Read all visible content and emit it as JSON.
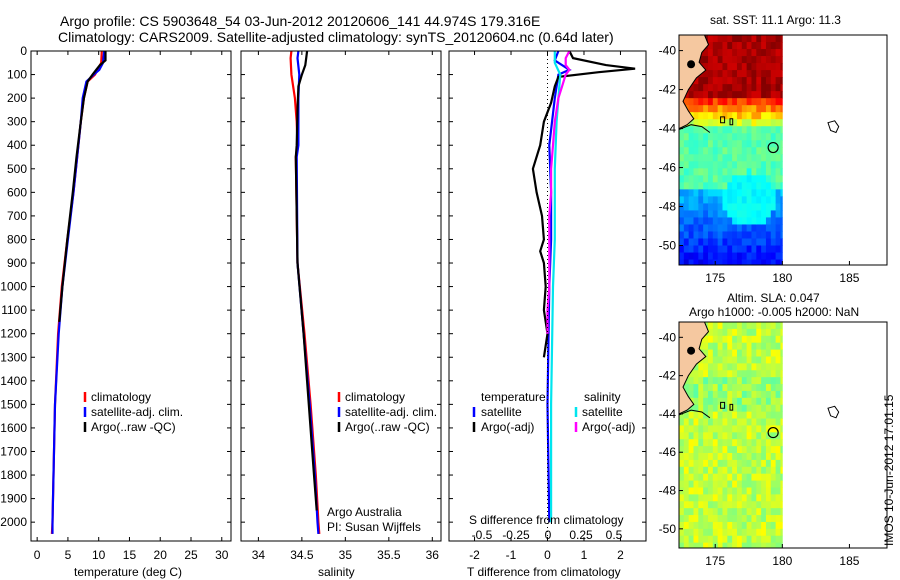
{
  "header": {
    "line1": "Argo profile: CS 5903648_54 03-Jun-2012 20120606_141 44.974S 179.316E",
    "line2": "Climatology: CARS2009. Satellite-adjusted climatology: synTS_20120604.nc (0.64d later)"
  },
  "depth_ticks": [
    "0",
    "100",
    "200",
    "300",
    "400",
    "500",
    "600",
    "700",
    "800",
    "900",
    "1000",
    "1100",
    "1200",
    "1300",
    "1400",
    "1500",
    "1600",
    "1700",
    "1800",
    "1900",
    "2000"
  ],
  "colors": {
    "climatology": "#ff0000",
    "satellite": "#0000ff",
    "argo": "#000000",
    "sat_salinity": "#00e5ee",
    "argo_salinity_adj": "#ff00ff",
    "land": "#f5c8a0"
  },
  "chart_data": [
    {
      "type": "line",
      "name": "temperature-profile",
      "xlabel": "temperature (deg C)",
      "xlim": [
        -1,
        31.5
      ],
      "ylim": [
        2080,
        0
      ],
      "xticks": [
        0,
        5,
        10,
        15,
        20,
        25,
        30
      ],
      "xtick_labels": [
        "0",
        "5",
        "10",
        "15",
        "20",
        "25",
        "30"
      ],
      "legend": [
        "climatology",
        "satellite-adj. clim.",
        "Argo(..raw -QC)"
      ],
      "series": [
        {
          "name": "climatology",
          "color": "#ff0000",
          "depth": [
            0,
            50,
            100,
            130,
            200,
            300,
            400,
            600,
            800,
            1000,
            1200,
            1500,
            2000,
            2050
          ],
          "values": [
            10.5,
            10.4,
            9.4,
            8.2,
            7.6,
            7.1,
            6.7,
            5.9,
            4.9,
            4.0,
            3.4,
            2.9,
            2.5,
            2.4
          ]
        },
        {
          "name": "satellite-adj. clim.",
          "color": "#0000ff",
          "depth": [
            0,
            50,
            80,
            100,
            130,
            200,
            300,
            400,
            600,
            800,
            1000,
            1200,
            1500,
            2000,
            2050
          ],
          "values": [
            10.9,
            10.7,
            10.1,
            9.2,
            8.0,
            7.4,
            7.1,
            6.7,
            5.9,
            5.0,
            4.1,
            3.5,
            2.9,
            2.5,
            2.5
          ]
        },
        {
          "name": "Argo(..raw -QC)",
          "color": "#000000",
          "depth": [
            0,
            40,
            60,
            80,
            100,
            130,
            200,
            300,
            450,
            600,
            800,
            1000,
            1150
          ],
          "values": [
            11.1,
            11.1,
            10.2,
            9.6,
            9.0,
            8.2,
            7.6,
            7.1,
            6.4,
            5.8,
            4.9,
            4.1,
            3.6
          ]
        }
      ]
    },
    {
      "type": "line",
      "name": "salinity-profile",
      "xlabel": "salinity",
      "xlim": [
        33.8,
        36.1
      ],
      "ylim": [
        2080,
        0
      ],
      "xticks": [
        34,
        34.5,
        35,
        35.5,
        36
      ],
      "xtick_labels": [
        "34",
        "34.5",
        "35",
        "35.5",
        "36"
      ],
      "legend": [
        "climatology",
        "satellite-adj. clim.",
        "Argo(..raw -QC)"
      ],
      "annotation": [
        "Argo Australia",
        "PI: Susan Wijffels"
      ],
      "series": [
        {
          "name": "climatology",
          "color": "#ff0000",
          "depth": [
            0,
            30,
            100,
            200,
            300,
            400,
            450,
            900,
            1200,
            1500,
            1800,
            2000,
            2050
          ],
          "values": [
            34.38,
            34.37,
            34.38,
            34.42,
            34.44,
            34.45,
            34.43,
            34.45,
            34.53,
            34.6,
            34.66,
            34.69,
            34.7
          ]
        },
        {
          "name": "satellite-adj. clim.",
          "color": "#0000ff",
          "depth": [
            0,
            30,
            100,
            200,
            300,
            400,
            450,
            900,
            1200,
            1500,
            1800,
            2000,
            2050
          ],
          "values": [
            34.46,
            34.45,
            34.47,
            34.46,
            34.46,
            34.46,
            34.44,
            34.45,
            34.52,
            34.59,
            34.65,
            34.68,
            34.69
          ]
        },
        {
          "name": "Argo(..raw -QC)",
          "color": "#000000",
          "depth": [
            0,
            30,
            60,
            100,
            150,
            250,
            400,
            450,
            900,
            1200,
            1500,
            1800,
            1950
          ],
          "values": [
            34.56,
            34.55,
            34.54,
            34.5,
            34.46,
            34.45,
            34.44,
            34.43,
            34.45,
            34.52,
            34.58,
            34.64,
            34.67
          ]
        }
      ]
    },
    {
      "type": "line",
      "name": "difference-profile",
      "xlabel": "T difference from climatology",
      "xlim": [
        -2.7,
        2.7
      ],
      "ylim": [
        2080,
        0
      ],
      "xticks": [
        -2,
        -1,
        0,
        1,
        2
      ],
      "xtick_labels": [
        "-2",
        "-1",
        "0",
        "1",
        "2"
      ],
      "top_label": "S difference from climatology",
      "top_ticks": [
        -0.5,
        -0.25,
        0,
        0.25,
        0.5
      ],
      "top_tick_labels": [
        "-0.5",
        "-0.25",
        "0",
        "0.25",
        "0.5"
      ],
      "legend_left": {
        "title": "temperature",
        "items": [
          "satellite",
          "Argo(-adj)"
        ]
      },
      "legend_right": {
        "title": "salinity",
        "items": [
          "satellite",
          "Argo(-adj)"
        ]
      },
      "series": [
        {
          "name": "satellite",
          "group": "temperature",
          "color": "#0000ff",
          "depth": [
            0,
            40,
            80,
            100,
            200,
            400,
            600,
            800,
            1000,
            1500,
            2000
          ],
          "values": [
            0.3,
            0.2,
            0.6,
            0.3,
            0.2,
            0.05,
            0.1,
            0.1,
            0.05,
            0.0,
            0.05
          ]
        },
        {
          "name": "Argo(-adj)",
          "group": "temperature",
          "color": "#000000",
          "depth": [
            0,
            30,
            60,
            75,
            90,
            110,
            150,
            220,
            300,
            400,
            500,
            600,
            700,
            800,
            850,
            900,
            1000,
            1100,
            1200,
            1300
          ],
          "values": [
            0.6,
            0.7,
            1.6,
            2.4,
            1.4,
            0.3,
            0.2,
            0.1,
            -0.1,
            -0.2,
            -0.4,
            -0.3,
            -0.15,
            -0.1,
            -0.2,
            -0.1,
            -0.05,
            -0.1,
            0.0,
            -0.1
          ]
        },
        {
          "name": "satellite",
          "group": "salinity",
          "color": "#00e5ee",
          "depth": [
            0,
            50,
            100,
            200,
            300,
            500,
            800,
            1000,
            1500,
            2000
          ],
          "values": [
            0.2,
            0.2,
            0.35,
            0.3,
            0.25,
            0.2,
            0.2,
            0.15,
            0.1,
            0.1
          ]
        },
        {
          "name": "Argo(-adj)",
          "group": "salinity",
          "color": "#ff00ff",
          "depth": [
            0,
            30,
            60,
            80,
            100,
            150,
            200,
            300,
            400,
            500,
            600,
            700,
            800,
            900,
            1000,
            1100,
            1200
          ],
          "values": [
            0.6,
            0.5,
            0.5,
            0.6,
            0.5,
            0.4,
            0.3,
            0.2,
            0.15,
            0.1,
            0.1,
            0.05,
            0.05,
            0.05,
            0.05,
            0.0,
            0.0
          ]
        }
      ]
    },
    {
      "type": "heatmap",
      "name": "sst-map",
      "title": "sat. SST: 11.1 Argo: 11.3",
      "xlim": [
        172.3,
        187.8
      ],
      "ylim": [
        -51,
        -39.2
      ],
      "xticks": [
        175,
        180,
        185
      ],
      "yticks": [
        -40,
        -42,
        -44,
        -46,
        -48,
        -50
      ],
      "ytick_labels": [
        "-40",
        "-42",
        "-44",
        "-46",
        "-48",
        "-50"
      ],
      "argo_position": [
        179.316,
        -44.974
      ],
      "data_extent_lon": [
        172.3,
        180
      ]
    },
    {
      "type": "heatmap",
      "name": "sla-map",
      "title": "Altim. SLA: 0.047",
      "subtitle": "Argo h1000: -0.005 h2000: NaN",
      "xlim": [
        172.3,
        187.8
      ],
      "ylim": [
        -51,
        -39.2
      ],
      "xticks": [
        175,
        180,
        185
      ],
      "yticks": [
        -40,
        -42,
        -44,
        -46,
        -48,
        -50
      ],
      "ytick_labels": [
        "-40",
        "-42",
        "-44",
        "-46",
        "-48",
        "-50"
      ],
      "argo_position": [
        179.316,
        -44.974
      ],
      "data_extent_lon": [
        172.3,
        180
      ]
    }
  ],
  "stamp": "IMOS 10-Jun-2012 17:01:15"
}
